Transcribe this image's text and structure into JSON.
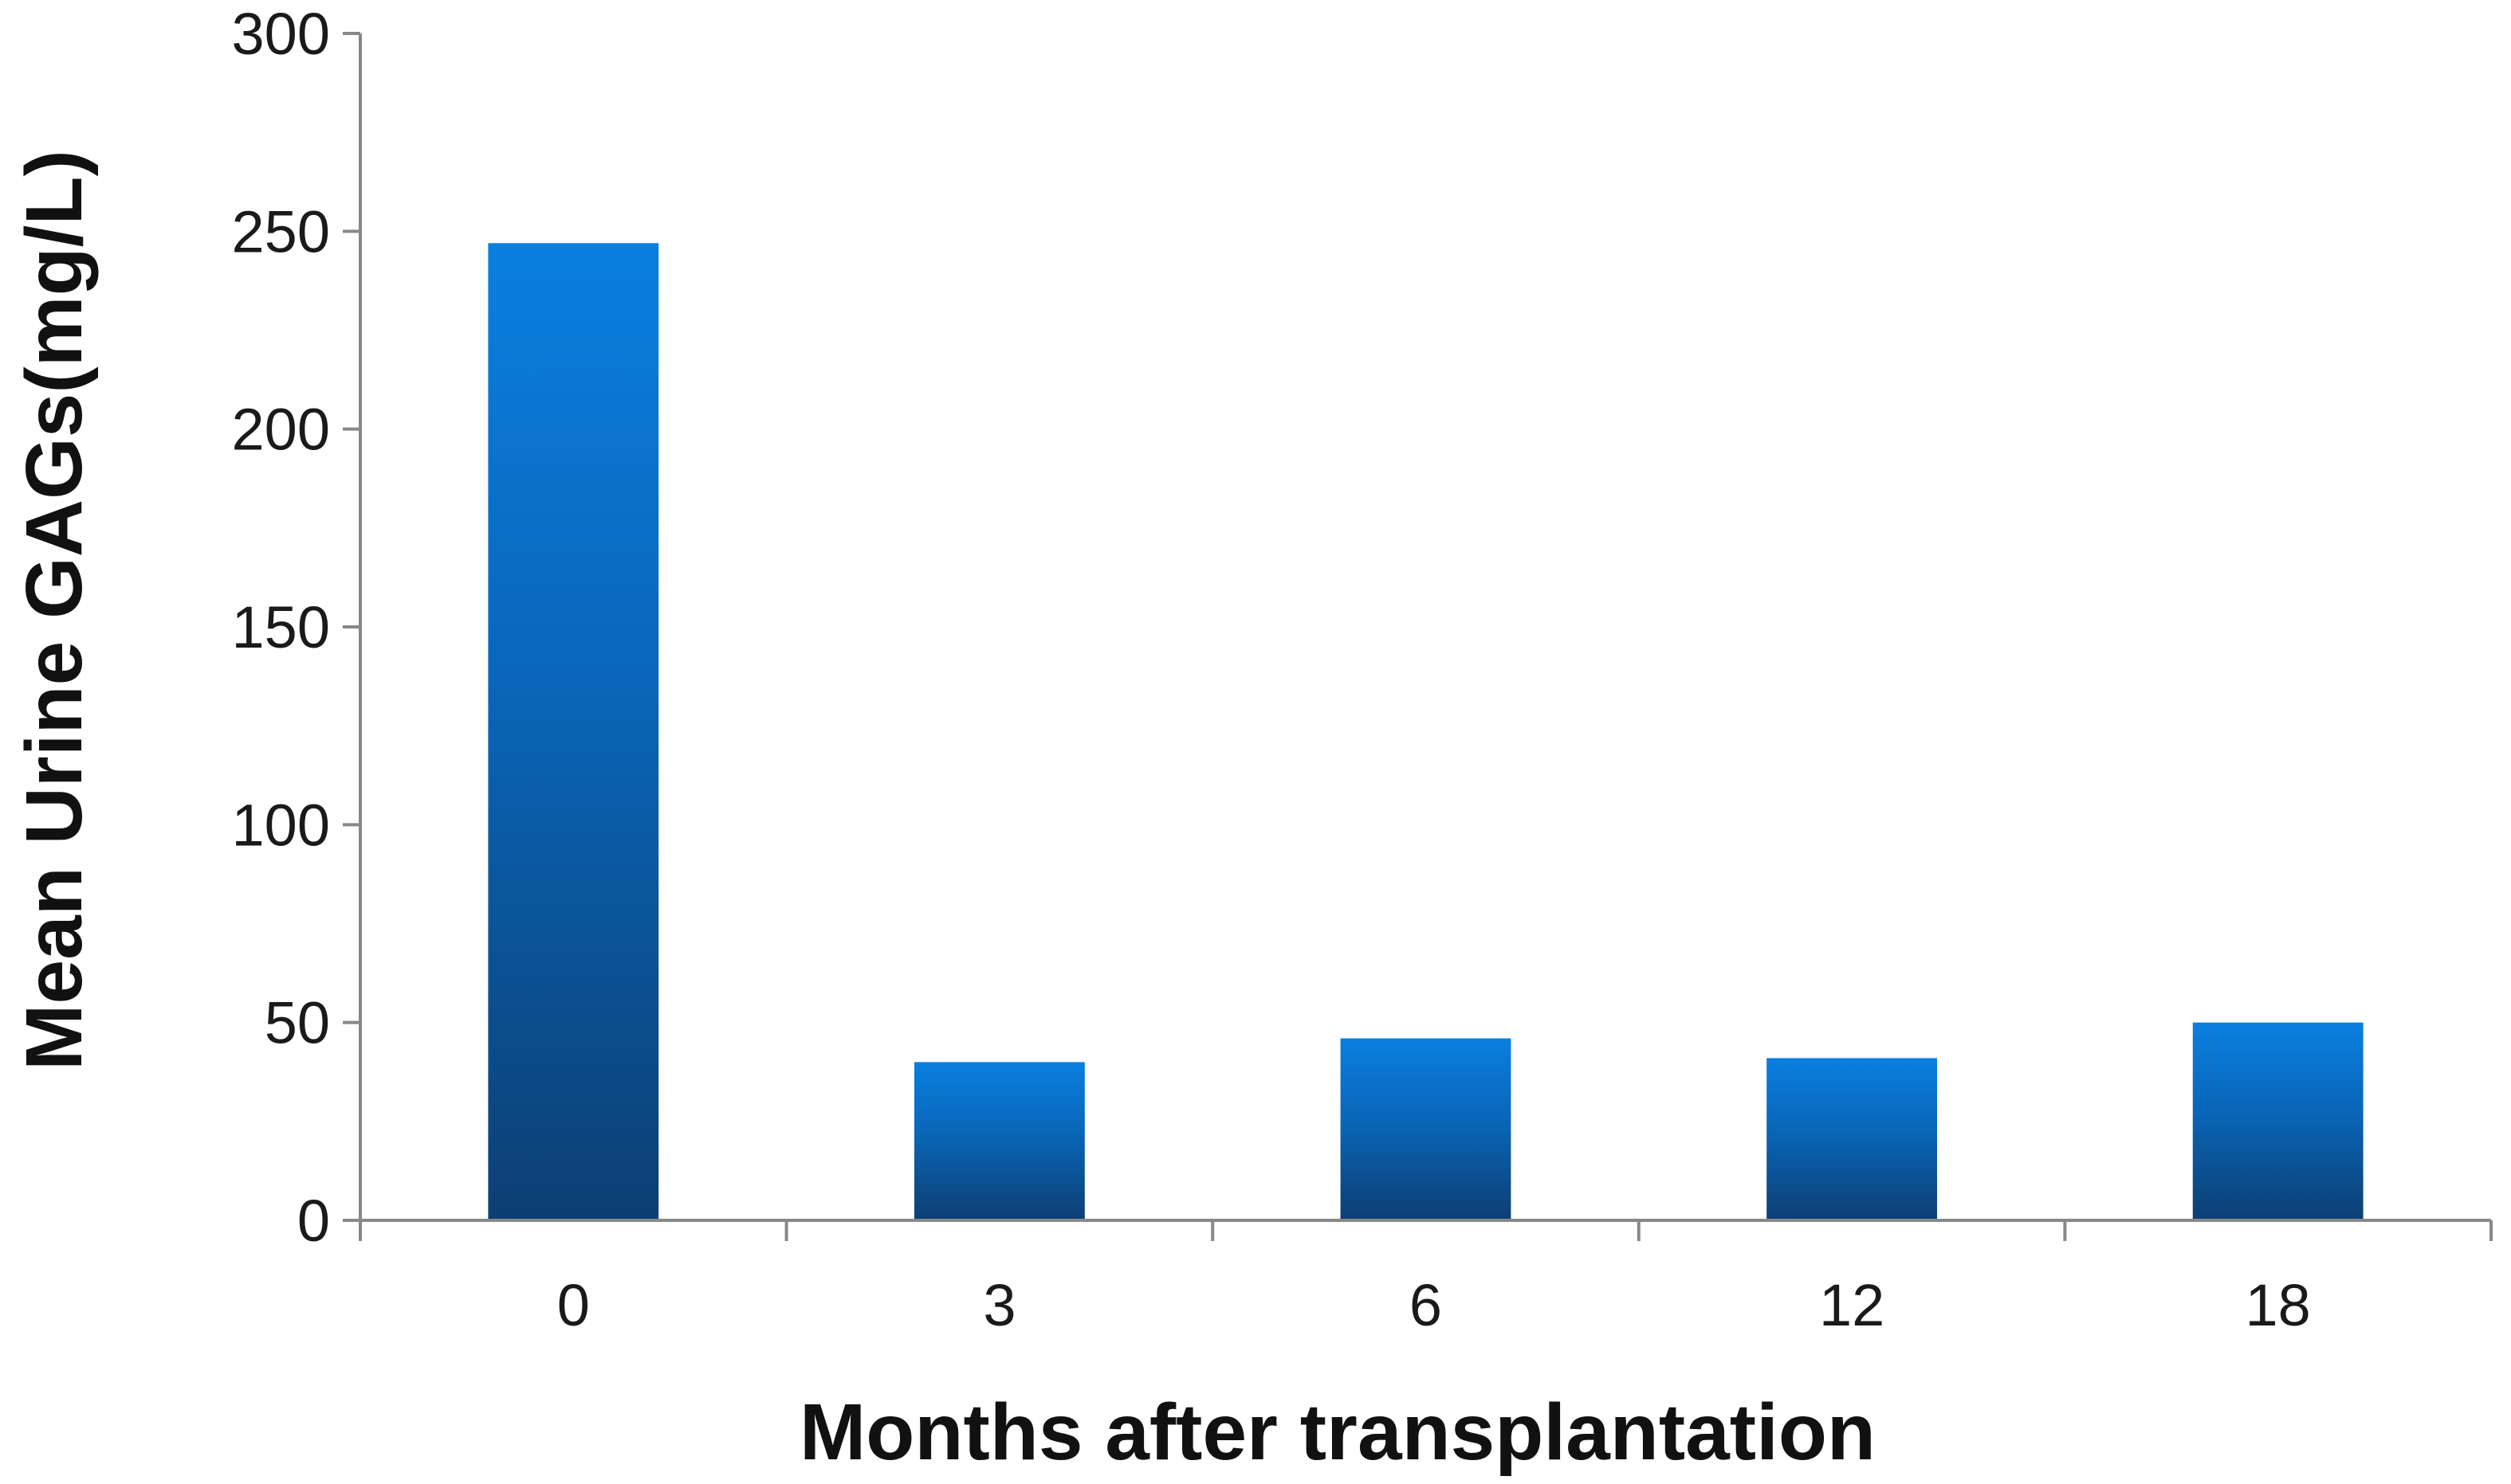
{
  "chart_data": {
    "type": "bar",
    "categories": [
      "0",
      "3",
      "6",
      "12",
      "18"
    ],
    "values": [
      247,
      40,
      46,
      41,
      50
    ],
    "title": "",
    "xlabel": "Months after transplantation",
    "ylabel": "Mean Urine GAGs(mg/L)",
    "ylim": [
      0,
      300
    ],
    "yticks": [
      "0",
      "50",
      "100",
      "150",
      "200",
      "250",
      "300"
    ],
    "grid": false,
    "legend": "none",
    "colors": {
      "bar_top": "#0a7fe0",
      "bar_bottom": "#0c3f73",
      "axis": "#888888",
      "text": "#111111"
    }
  }
}
